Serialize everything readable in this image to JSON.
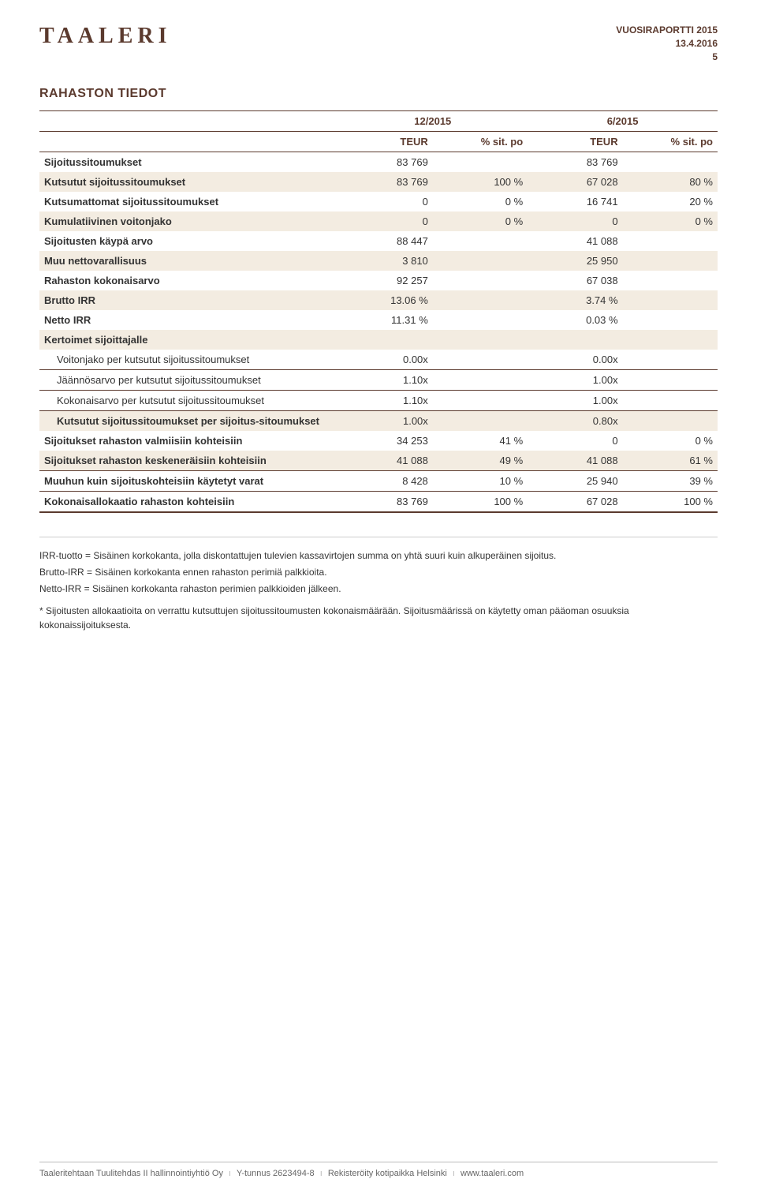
{
  "header": {
    "logo": "TAALERI",
    "report_line": "VUOSIRAPORTTI 2015",
    "date": "13.4.2016",
    "page": "5"
  },
  "section_title": "RAHASTON TIEDOT",
  "periods": {
    "p1": "12/2015",
    "p2": "6/2015"
  },
  "col_headers": {
    "teur": "TEUR",
    "sitpo": "% sit. po"
  },
  "rows": {
    "r1": {
      "label": "Sijoitussitoumukset",
      "a": "83 769",
      "b": "",
      "c": "83 769",
      "d": ""
    },
    "r2": {
      "label": "Kutsutut sijoitussitoumukset",
      "a": "83 769",
      "b": "100 %",
      "c": "67 028",
      "d": "80 %"
    },
    "r3": {
      "label": "Kutsumattomat sijoitussitoumukset",
      "a": "0",
      "b": "0 %",
      "c": "16 741",
      "d": "20 %"
    },
    "r4": {
      "label": "Kumulatiivinen voitonjako",
      "a": "0",
      "b": "0 %",
      "c": "0",
      "d": "0 %"
    },
    "r5": {
      "label": "Sijoitusten käypä arvo",
      "a": "88 447",
      "b": "",
      "c": "41 088",
      "d": ""
    },
    "r6": {
      "label": "Muu nettovarallisuus",
      "a": "3 810",
      "b": "",
      "c": "25 950",
      "d": ""
    },
    "r7": {
      "label": "Rahaston kokonaisarvo",
      "a": "92 257",
      "b": "",
      "c": "67 038",
      "d": ""
    },
    "r8": {
      "label": "Brutto IRR",
      "a": "13.06 %",
      "b": "",
      "c": "3.74 %",
      "d": ""
    },
    "r9": {
      "label": "Netto IRR",
      "a": "11.31 %",
      "b": "",
      "c": "0.03 %",
      "d": ""
    },
    "r10": {
      "label": "Kertoimet sijoittajalle"
    },
    "r11": {
      "label": "Voitonjako per kutsutut sijoitussitoumukset",
      "a": "0.00x",
      "b": "",
      "c": "0.00x",
      "d": ""
    },
    "r12": {
      "label": "Jäännösarvo per kutsutut sijoitussitoumukset",
      "a": "1.10x",
      "b": "",
      "c": "1.00x",
      "d": ""
    },
    "r13": {
      "label": "Kokonaisarvo per kutsutut sijoitussitoumukset",
      "a": "1.10x",
      "b": "",
      "c": "1.00x",
      "d": ""
    },
    "r14": {
      "label": "Kutsutut sijoitussitoumukset per sijoitus-sitoumukset",
      "a": "1.00x",
      "b": "",
      "c": "0.80x",
      "d": ""
    },
    "r15": {
      "label": "Sijoitukset rahaston valmiisiin kohteisiin",
      "a": "34 253",
      "b": "41 %",
      "c": "0",
      "d": "0 %"
    },
    "r16": {
      "label": "Sijoitukset rahaston keskeneräisiin kohteisiin",
      "a": "41 088",
      "b": "49 %",
      "c": "41 088",
      "d": "61 %"
    },
    "r17": {
      "label": "Muuhun kuin sijoituskohteisiin käytetyt varat",
      "a": "8 428",
      "b": "10 %",
      "c": "25 940",
      "d": "39 %"
    },
    "r18": {
      "label": "Kokonaisallokaatio rahaston kohteisiin",
      "a": "83 769",
      "b": "100 %",
      "c": "67 028",
      "d": "100 %"
    }
  },
  "footnotes": {
    "n1": "IRR-tuotto = Sisäinen korkokanta, jolla diskontattujen tulevien kassavirtojen summa on yhtä suuri kuin alkuperäinen sijoitus.",
    "n2": "Brutto-IRR = Sisäinen korkokanta ennen rahaston perimiä palkkioita.",
    "n3": "Netto-IRR = Sisäinen korkokanta rahaston perimien palkkioiden jälkeen.",
    "n4": "* Sijoitusten allokaatioita on verrattu kutsuttujen sijoitussitoumusten kokonaismäärään. Sijoitusmäärissä on käytetty oman pääoman osuuksia kokonaissijoituksesta."
  },
  "footer": {
    "company": "Taaleritehtaan Tuulitehdas II hallinnointiyhtiö Oy",
    "ytunnus": "Y-tunnus 2623494-8",
    "kotipaikka": "Rekisteröity kotipaikka Helsinki",
    "url": "www.taaleri.com"
  }
}
